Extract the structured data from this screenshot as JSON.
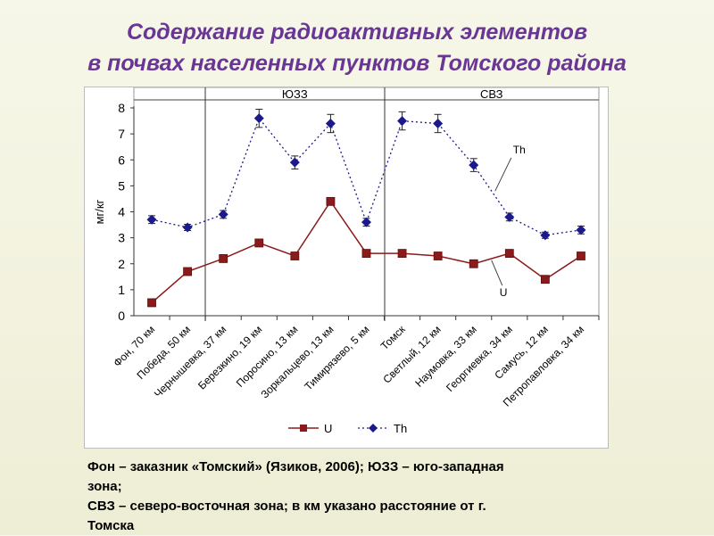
{
  "title": {
    "line1": "Содержание радиоактивных элементов",
    "line2": "в почвах населенных пунктов Томского района"
  },
  "caption": {
    "line1": "Фон – заказник «Томский» (Язиков, 2006); ЮЗЗ – юго-западная",
    "line2": "зона;",
    "line3": "СВЗ – северо-восточная зона; в км указано расстояние от г.",
    "line4": "Томска"
  },
  "chart_data": {
    "type": "line",
    "ylabel": "мг/кг",
    "xlabel": "",
    "ylim": [
      0,
      8
    ],
    "yticks": [
      "0",
      "1",
      "2",
      "3",
      "4",
      "5",
      "6",
      "7",
      "8"
    ],
    "categories": [
      "Фон, 70 км",
      "Победа, 50 км",
      "Чернышевка, 37 км",
      "Березкино, 19 км",
      "Поросино, 13 км",
      "Зоркальцево, 13 км",
      "Тимирязево, 5 км",
      "Томск",
      "Светлый, 12 км",
      "Наумовка, 33 км",
      "Георгиевка, 34 км",
      "Самусь, 12 км",
      "Петропавловка, 34 км"
    ],
    "zones": [
      {
        "label": "ЮЗЗ",
        "from": 2,
        "to": 6
      },
      {
        "label": "СВЗ",
        "from": 7,
        "to": 12
      }
    ],
    "series": [
      {
        "name": "U",
        "color": "#8b1a1a",
        "marker": "square",
        "line": "solid",
        "values": [
          0.5,
          1.7,
          2.2,
          2.8,
          2.3,
          4.4,
          2.4,
          2.4,
          2.3,
          2.0,
          2.4,
          1.4,
          2.3
        ]
      },
      {
        "name": "Th",
        "color": "#1a1a8c",
        "marker": "diamond",
        "line": "dotted",
        "values": [
          3.7,
          3.4,
          3.9,
          7.6,
          5.9,
          7.4,
          3.6,
          7.5,
          7.4,
          5.8,
          3.8,
          3.1,
          3.3
        ],
        "errors": [
          0.15,
          0.12,
          0.15,
          0.35,
          0.25,
          0.35,
          0.15,
          0.35,
          0.35,
          0.25,
          0.15,
          0.12,
          0.15
        ]
      }
    ],
    "annotations": [
      {
        "text": "Th",
        "series": "Th"
      },
      {
        "text": "U",
        "series": "U"
      }
    ],
    "legend": {
      "placement": "bottom"
    },
    "grid": false
  }
}
